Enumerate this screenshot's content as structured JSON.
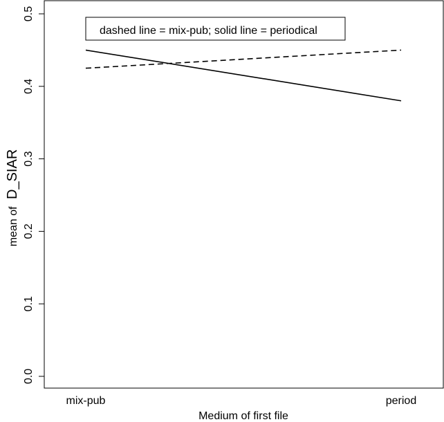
{
  "chart_data": {
    "type": "line",
    "title": "",
    "xlabel": "Medium of first file",
    "ylabel_prefix": "mean of",
    "ylabel_var": "D_SIAR",
    "categories": [
      "mix-pub",
      "period"
    ],
    "series": [
      {
        "line_style": "dashed",
        "values": [
          0.425,
          0.45
        ]
      },
      {
        "line_style": "solid",
        "values": [
          0.45,
          0.38
        ]
      }
    ],
    "ylim": [
      0.0,
      0.5
    ],
    "yticks": [
      "0.0",
      "0.1",
      "0.2",
      "0.3",
      "0.4",
      "0.5"
    ],
    "legend_text": "dashed line = mix-pub; solid line = periodical",
    "legend_position": "top-left",
    "grid": false
  }
}
